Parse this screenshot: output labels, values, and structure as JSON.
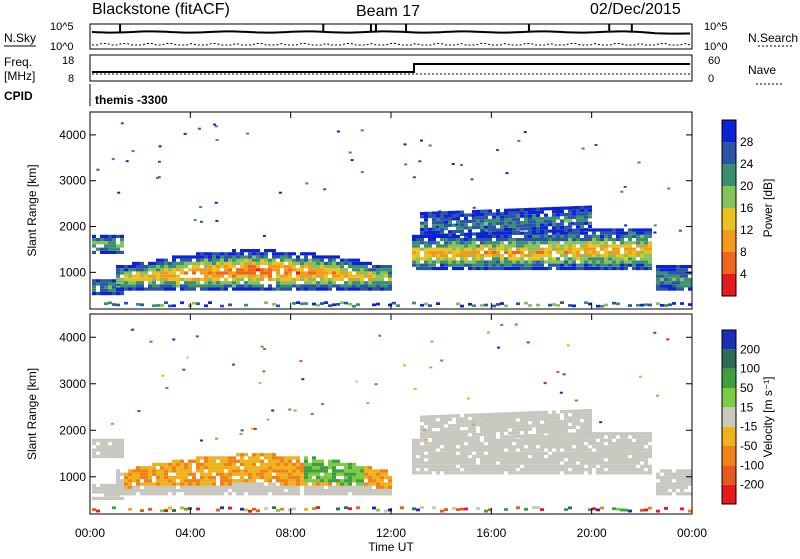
{
  "header": {
    "radar": "Blackstone (fitACF)",
    "beam": "Beam 17",
    "date": "02/Dec/2015"
  },
  "top_panels": {
    "nsky": {
      "label": "N.Sky",
      "left_ticks": [
        "10^5",
        "10^0"
      ],
      "right_ticks": [
        "10^5",
        "10^0"
      ],
      "right_label": "N.Search"
    },
    "freq": {
      "label_top": "Freq.",
      "label_unit": "[MHz]",
      "left_ticks": [
        "18",
        "8"
      ],
      "right_ticks": [
        "60",
        "0"
      ],
      "right_label": "Nave"
    },
    "cpid": {
      "label": "CPID",
      "value": "themis -3300"
    }
  },
  "chart_data": [
    {
      "type": "heatmap",
      "title": "",
      "ylabel": "Slant Range [km]",
      "xlabel": "",
      "y_ticks": [
        1000,
        2000,
        3000,
        4000
      ],
      "ylim": [
        200,
        4500
      ],
      "x_ticks": [
        "00:00",
        "04:00",
        "08:00",
        "12:00",
        "16:00",
        "20:00",
        "00:00"
      ],
      "colorbar": {
        "label": "Power [dB]",
        "ticks": [
          "4",
          "8",
          "12",
          "16",
          "20",
          "24",
          "28"
        ],
        "colors": [
          "#0b22d6",
          "#2a55a8",
          "#3a8f6e",
          "#84c35b",
          "#e9c21f",
          "#f39a1c",
          "#f06620",
          "#e41a1c"
        ]
      }
    },
    {
      "type": "heatmap",
      "title": "",
      "ylabel": "Slant Range [km]",
      "xlabel": "Time UT",
      "y_ticks": [
        1000,
        2000,
        3000,
        4000
      ],
      "ylim": [
        200,
        4500
      ],
      "x_ticks": [
        "00:00",
        "04:00",
        "08:00",
        "12:00",
        "16:00",
        "20:00",
        "00:00"
      ],
      "colorbar": {
        "label": "Velocity [m s⁻¹]",
        "ticks": [
          "200",
          "100",
          "50",
          "15",
          "-15",
          "-50",
          "-100",
          "-200"
        ],
        "colors": [
          "#1a2fb5",
          "#2a6c54",
          "#3f9e3f",
          "#7ccc43",
          "#c8c8c0",
          "#f0b21c",
          "#f0821c",
          "#e35a1c",
          "#e41a1c"
        ]
      }
    }
  ],
  "colors": {
    "frame": "#000000",
    "ground_scatter": "#c8c8c0"
  }
}
